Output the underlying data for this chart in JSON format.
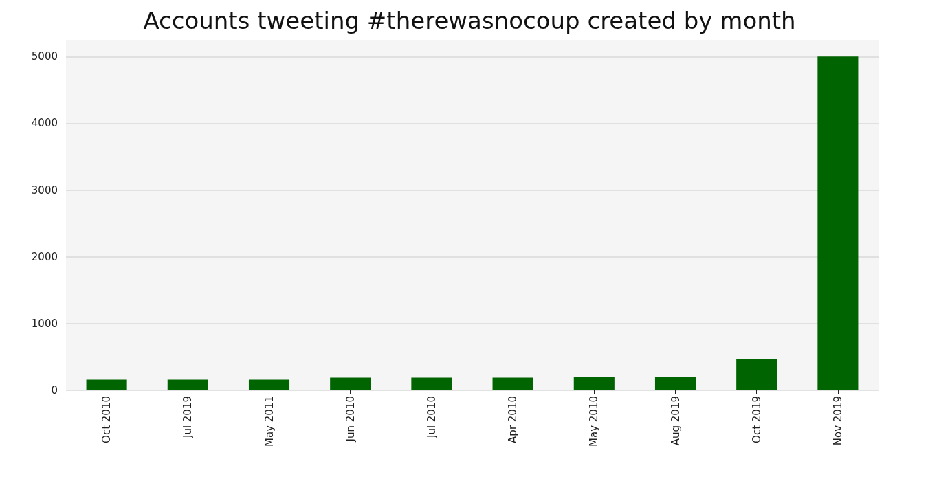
{
  "chart_data": {
    "type": "bar",
    "title": "Accounts tweeting #therewasnocoup created by month",
    "categories": [
      "Oct 2010",
      "Jul 2019",
      "May 2011",
      "Jun 2010",
      "Jul 2010",
      "Apr 2010",
      "May 2010",
      "Aug 2019",
      "Oct 2019",
      "Nov 2019"
    ],
    "values": [
      160,
      160,
      160,
      190,
      190,
      190,
      200,
      200,
      470,
      5000
    ],
    "color": "#006400",
    "ylim": [
      0,
      5250
    ],
    "yticks": [
      0,
      1000,
      2000,
      3000,
      4000,
      5000
    ],
    "grid": "y"
  }
}
